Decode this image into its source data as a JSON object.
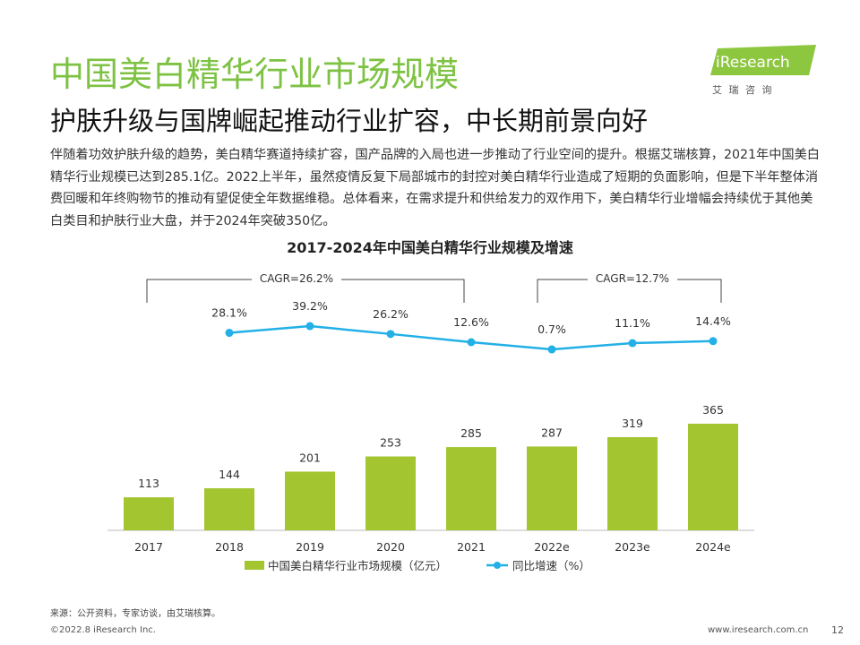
{
  "header": {
    "title": "中国美白精华行业市场规模",
    "subtitle": "护肤升级与国牌崛起推动行业扩容，中长期前景向好",
    "logo": "iResearch",
    "logo_sub": "艾 瑞 咨 询"
  },
  "body": "伴随着功效护肤升级的趋势，美白精华赛道持续扩容，国产品牌的入局也进一步推动了行业空间的提升。根据艾瑞核算，2021年中国美白精华行业规模已达到285.1亿。2022上半年，虽然疫情反复下局部城市的封控对美白精华行业造成了短期的负面影响，但是下半年整体消费回暖和年终购物节的推动有望促使全年数据维稳。总体看来，在需求提升和供给发力的双作用下，美白精华行业增幅会持续优于其他美白类目和护肤行业大盘，并于2024年突破350亿。",
  "chart_data": {
    "type": "bar",
    "title": "2017-2024年中国美白精华行业规模及增速",
    "categories": [
      "2017",
      "2018",
      "2019",
      "2020",
      "2021",
      "2022e",
      "2023e",
      "2024e"
    ],
    "series": [
      {
        "name": "中国美白精华行业市场规模（亿元）",
        "color": "#a2c530",
        "type": "bar",
        "values": [
          113,
          144,
          201,
          253,
          285,
          287,
          319,
          365
        ]
      },
      {
        "name": "同比增速（%）",
        "color": "#22b0e6",
        "type": "line",
        "values": [
          null,
          28.1,
          39.2,
          26.2,
          12.6,
          0.7,
          11.1,
          14.4
        ],
        "value_labels": [
          null,
          "28.1%",
          "39.2%",
          "26.2%",
          "12.6%",
          "0.7%",
          "11.1%",
          "14.4%"
        ]
      }
    ],
    "annotations": [
      "CAGR=26.2%",
      "CAGR=12.7%"
    ]
  },
  "footer": {
    "source": "来源：公开资料，专家访谈，由艾瑞核算。",
    "copyright": "©2022.8 iResearch Inc.",
    "url": "www.iresearch.com.cn",
    "page": "12"
  }
}
